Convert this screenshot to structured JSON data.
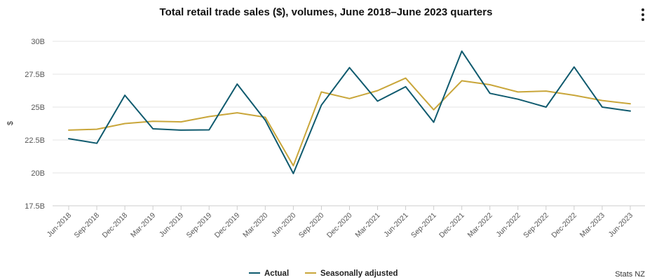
{
  "header": {
    "title": "Total retail trade sales ($), volumes, June 2018–June 2023 quarters",
    "menu_icon": "more-vertical-icon"
  },
  "credits": "Stats NZ",
  "colors": {
    "actual": "#0f5a6e",
    "seasonally_adjusted": "#c9a63a",
    "grid": "#e6e6e6",
    "axis": "#cccccc"
  },
  "chart_data": {
    "type": "line",
    "title": "Total retail trade sales ($), volumes, June 2018–June 2023 quarters",
    "xlabel": "",
    "ylabel": "$",
    "ylim": [
      17.5,
      30
    ],
    "yticks": [
      17.5,
      20,
      22.5,
      25,
      27.5,
      30
    ],
    "ytick_labels": [
      "17.5B",
      "20B",
      "22.5B",
      "25B",
      "27.5B",
      "30B"
    ],
    "grid": true,
    "legend_position": "bottom-center",
    "categories": [
      "Jun-2018",
      "Sep-2018",
      "Dec-2018",
      "Mar-2019",
      "Jun-2019",
      "Sep-2019",
      "Dec-2019",
      "Mar-2020",
      "Jun-2020",
      "Sep-2020",
      "Dec-2020",
      "Mar-2021",
      "Jun-2021",
      "Sep-2021",
      "Dec-2021",
      "Mar-2022",
      "Jun-2022",
      "Sep-2022",
      "Dec-2022",
      "Mar-2023",
      "Jun-2023"
    ],
    "series": [
      {
        "name": "Actual",
        "values": [
          22.6,
          22.25,
          25.9,
          23.35,
          23.25,
          23.27,
          26.75,
          24.0,
          19.95,
          25.15,
          28.0,
          25.45,
          26.55,
          23.85,
          29.25,
          26.05,
          25.6,
          25.0,
          28.05,
          25.0,
          24.7
        ]
      },
      {
        "name": "Seasonally adjusted",
        "values": [
          23.25,
          23.32,
          23.75,
          23.92,
          23.88,
          24.28,
          24.57,
          24.23,
          20.55,
          26.15,
          25.65,
          26.25,
          27.2,
          24.8,
          27.0,
          26.7,
          26.15,
          26.22,
          25.9,
          25.5,
          25.25
        ]
      }
    ]
  }
}
